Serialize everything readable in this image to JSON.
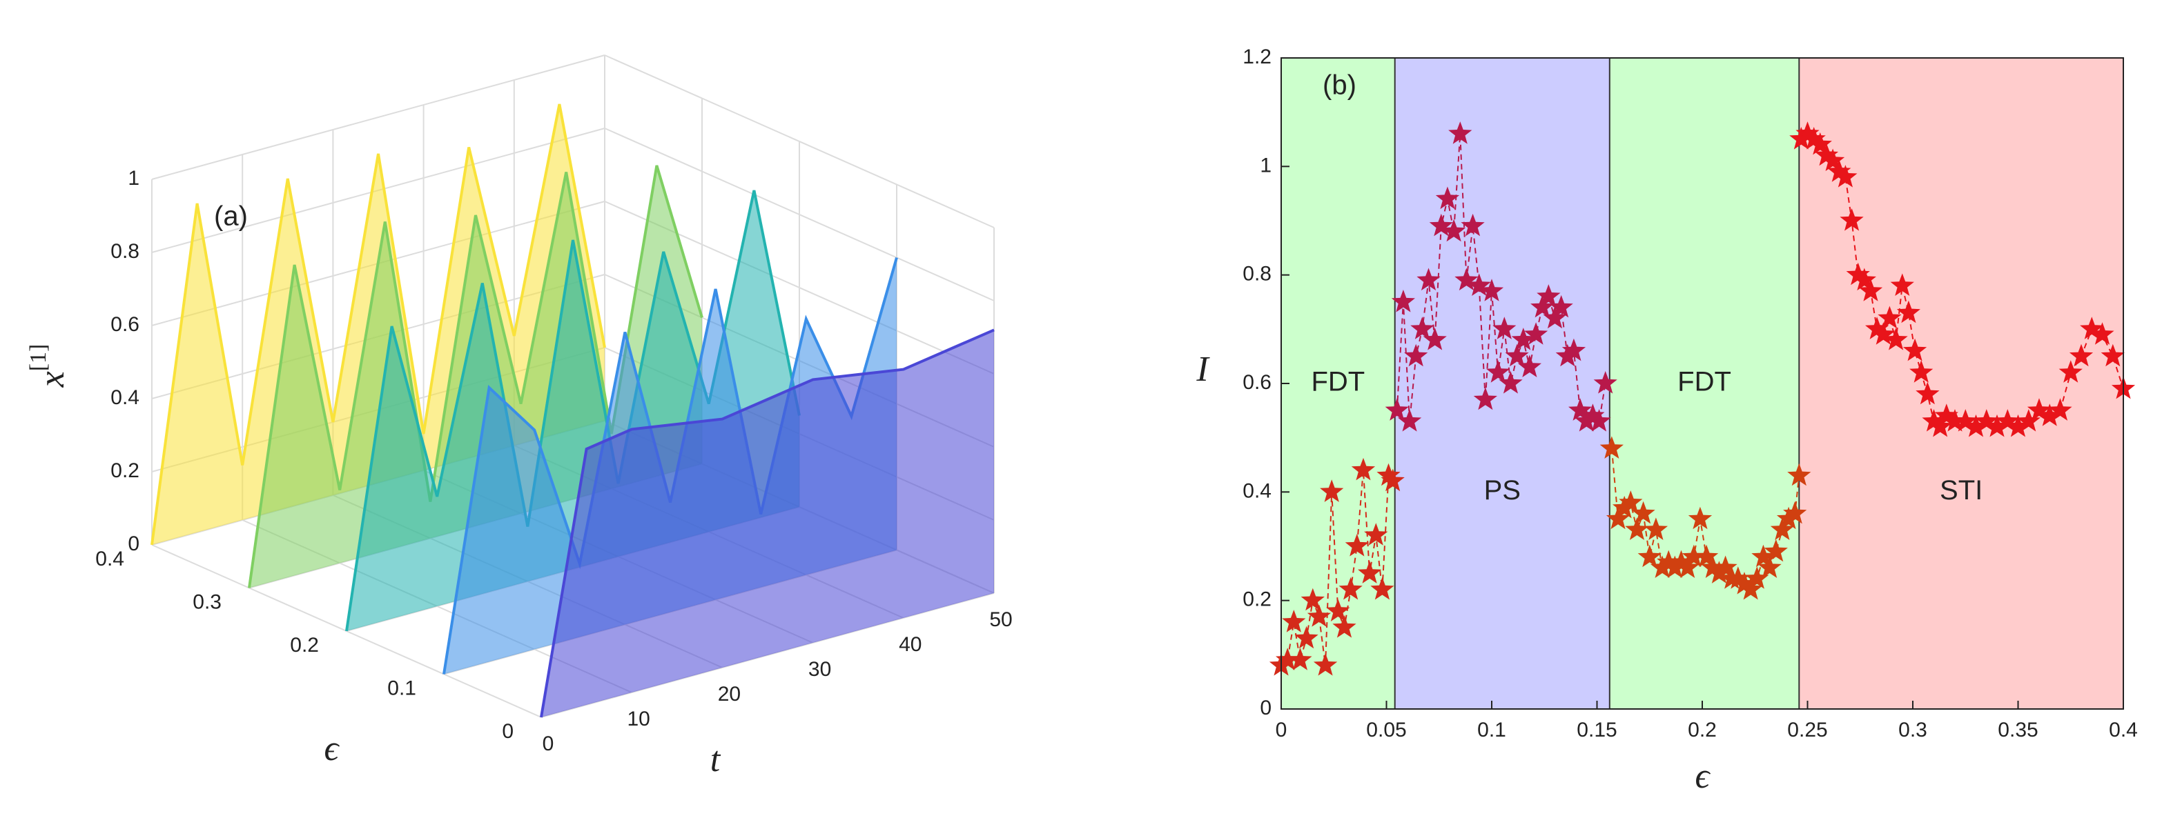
{
  "chart_data": [
    {
      "type": "surface3d",
      "label": "(a)",
      "xlabel": "t",
      "ylabel": "ϵ",
      "zlabel": "x",
      "zlabel_sup": "[1]",
      "xlim": [
        0,
        50
      ],
      "xticks": [
        0,
        10,
        20,
        30,
        40,
        50
      ],
      "ylim": [
        0,
        0.4
      ],
      "yticks": [
        0,
        0.1,
        0.2,
        0.3,
        0.4
      ],
      "zlim": [
        0,
        1
      ],
      "zticks": [
        0,
        0.2,
        0.4,
        0.6,
        0.8,
        1
      ],
      "grid": true,
      "x": [
        0,
        5,
        10,
        15,
        20,
        25,
        30,
        35,
        40,
        45,
        50
      ],
      "slices": [
        {
          "epsilon": 0.4,
          "color": "#f9e23a",
          "values": [
            0,
            0.9,
            0.15,
            0.9,
            0.2,
            0.9,
            0.1,
            0.85,
            0.3,
            0.9,
            0.2
          ]
        },
        {
          "epsilon": 0.3,
          "color": "#7fcf62",
          "values": [
            0,
            0.85,
            0.2,
            0.9,
            0.1,
            0.85,
            0.3,
            0.9,
            0.15,
            0.85,
            0.4
          ]
        },
        {
          "epsilon": 0.2,
          "color": "#23b3b0",
          "values": [
            0,
            0.8,
            0.3,
            0.85,
            0.15,
            0.9,
            0.2,
            0.8,
            0.35,
            0.9,
            0.25
          ]
        },
        {
          "epsilon": 0.1,
          "color": "#3a8ee8",
          "values": [
            0,
            0.75,
            0.6,
            0.2,
            0.8,
            0.3,
            0.85,
            0.2,
            0.7,
            0.4,
            0.8
          ]
        },
        {
          "epsilon": 0,
          "color": "#4a47d6",
          "values": [
            0,
            0.7,
            0.72,
            0.7,
            0.68,
            0.7,
            0.72,
            0.7,
            0.68,
            0.7,
            0.72
          ]
        }
      ]
    },
    {
      "type": "scatter",
      "label": "(b)",
      "xlabel": "ϵ",
      "ylabel": "I",
      "marker": "star",
      "line_style": "dashed",
      "xlim": [
        0,
        0.4
      ],
      "xticks": [
        0,
        0.05,
        0.1,
        0.15,
        0.2,
        0.25,
        0.3,
        0.35,
        0.4
      ],
      "ylim": [
        0,
        1.2
      ],
      "yticks": [
        0,
        0.2,
        0.4,
        0.6,
        0.8,
        1,
        1.2
      ],
      "regions": [
        {
          "label": "FDT",
          "start": 0,
          "end": 0.054,
          "color": "#ccffcc"
        },
        {
          "label": "PS",
          "start": 0.054,
          "end": 0.156,
          "color": "#ccccff"
        },
        {
          "label": "FDT",
          "start": 0.156,
          "end": 0.246,
          "color": "#ccffcc"
        },
        {
          "label": "STI",
          "start": 0.246,
          "end": 0.4,
          "color": "#ffcccc"
        }
      ],
      "series": [
        {
          "color": "#d42a1a",
          "x": [
            0,
            0.003,
            0.006,
            0.009,
            0.012,
            0.015,
            0.018,
            0.021,
            0.024,
            0.027,
            0.03,
            0.033,
            0.036,
            0.039,
            0.042,
            0.045,
            0.048,
            0.051,
            0.053
          ],
          "values": [
            0.08,
            0.09,
            0.16,
            0.09,
            0.13,
            0.2,
            0.17,
            0.08,
            0.4,
            0.18,
            0.15,
            0.22,
            0.3,
            0.44,
            0.25,
            0.32,
            0.22,
            0.43,
            0.42
          ]
        },
        {
          "color": "#b8184a",
          "x": [
            0.055,
            0.058,
            0.061,
            0.064,
            0.067,
            0.07,
            0.073,
            0.076,
            0.079,
            0.082,
            0.085,
            0.088,
            0.091,
            0.094,
            0.097,
            0.1,
            0.103,
            0.106,
            0.109,
            0.112,
            0.115,
            0.118,
            0.121,
            0.124,
            0.127,
            0.13,
            0.133,
            0.136,
            0.139,
            0.142,
            0.145,
            0.148,
            0.151,
            0.154
          ],
          "values": [
            0.55,
            0.75,
            0.53,
            0.65,
            0.7,
            0.79,
            0.68,
            0.89,
            0.94,
            0.88,
            1.06,
            0.79,
            0.89,
            0.78,
            0.57,
            0.77,
            0.62,
            0.7,
            0.6,
            0.65,
            0.68,
            0.63,
            0.69,
            0.74,
            0.76,
            0.72,
            0.74,
            0.65,
            0.66,
            0.55,
            0.53,
            0.54,
            0.53,
            0.6
          ]
        },
        {
          "color": "#d04010",
          "x": [
            0.157,
            0.16,
            0.163,
            0.166,
            0.169,
            0.172,
            0.175,
            0.178,
            0.181,
            0.184,
            0.187,
            0.19,
            0.193,
            0.196,
            0.199,
            0.202,
            0.205,
            0.208,
            0.211,
            0.214,
            0.217,
            0.22,
            0.223,
            0.226,
            0.229,
            0.232,
            0.235,
            0.238,
            0.241,
            0.244,
            0.246
          ],
          "values": [
            0.48,
            0.35,
            0.37,
            0.38,
            0.33,
            0.36,
            0.28,
            0.33,
            0.26,
            0.27,
            0.26,
            0.27,
            0.26,
            0.28,
            0.35,
            0.28,
            0.26,
            0.25,
            0.26,
            0.24,
            0.24,
            0.23,
            0.22,
            0.24,
            0.28,
            0.26,
            0.29,
            0.33,
            0.35,
            0.36,
            0.43
          ]
        },
        {
          "color": "#e8141a",
          "x": [
            0.247,
            0.25,
            0.253,
            0.256,
            0.259,
            0.262,
            0.265,
            0.268,
            0.271,
            0.274,
            0.277,
            0.28,
            0.283,
            0.286,
            0.289,
            0.292,
            0.295,
            0.298,
            0.301,
            0.304,
            0.307,
            0.31,
            0.313,
            0.316,
            0.32,
            0.325,
            0.33,
            0.335,
            0.34,
            0.345,
            0.35,
            0.355,
            0.36,
            0.365,
            0.37,
            0.375,
            0.38,
            0.385,
            0.39,
            0.395,
            0.4
          ],
          "values": [
            1.05,
            1.06,
            1.05,
            1.04,
            1.02,
            1.01,
            0.99,
            0.98,
            0.9,
            0.8,
            0.79,
            0.77,
            0.7,
            0.69,
            0.72,
            0.68,
            0.78,
            0.73,
            0.66,
            0.62,
            0.58,
            0.53,
            0.52,
            0.54,
            0.53,
            0.53,
            0.52,
            0.53,
            0.52,
            0.53,
            0.52,
            0.53,
            0.55,
            0.54,
            0.55,
            0.62,
            0.65,
            0.7,
            0.69,
            0.65,
            0.59
          ]
        }
      ]
    }
  ]
}
